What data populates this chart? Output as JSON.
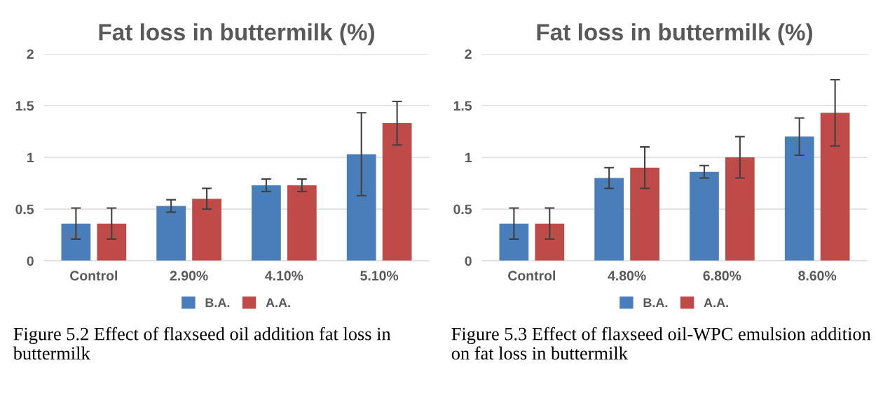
{
  "chart_data": [
    {
      "type": "bar",
      "title": "Fat loss in buttermilk (%)",
      "categories": [
        "Control",
        "2.90%",
        "4.10%",
        "5.10%"
      ],
      "ylim": [
        0,
        2
      ],
      "yticks": [
        0,
        0.5,
        1,
        1.5,
        2
      ],
      "grid": "y",
      "legend": "bottom",
      "series": [
        {
          "name": "B.A.",
          "color": "#4a7ebb",
          "values": [
            0.36,
            0.53,
            0.73,
            1.03
          ],
          "errors": [
            0.15,
            0.06,
            0.06,
            0.4
          ]
        },
        {
          "name": "A.A.",
          "color": "#be4b48",
          "values": [
            0.36,
            0.6,
            0.73,
            1.33
          ],
          "errors": [
            0.15,
            0.1,
            0.06,
            0.21
          ]
        }
      ],
      "annotations": [
        "Figure 5.2 Effect of flaxseed oil addition fat loss in buttermilk"
      ]
    },
    {
      "type": "bar",
      "title": "Fat loss in buttermilk (%)",
      "categories": [
        "Control",
        "4.80%",
        "6.80%",
        "8.60%"
      ],
      "ylim": [
        0,
        2
      ],
      "yticks": [
        0,
        0.5,
        1,
        1.5,
        2
      ],
      "grid": "y",
      "legend": "bottom",
      "series": [
        {
          "name": "B.A.",
          "color": "#4a7ebb",
          "values": [
            0.36,
            0.8,
            0.86,
            1.2
          ],
          "errors": [
            0.15,
            0.1,
            0.06,
            0.18
          ]
        },
        {
          "name": "A.A.",
          "color": "#be4b48",
          "values": [
            0.36,
            0.9,
            1.0,
            1.43
          ],
          "errors": [
            0.15,
            0.2,
            0.2,
            0.32
          ]
        }
      ],
      "annotations": [
        "Figure 5.3 Effect of flaxseed oil-WPC emulsion addition on fat loss in buttermilk"
      ]
    }
  ]
}
